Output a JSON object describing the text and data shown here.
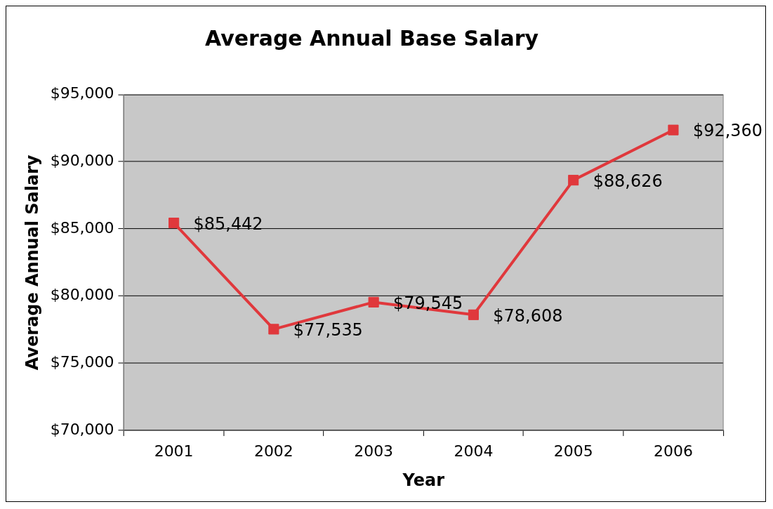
{
  "chart_data": {
    "type": "line",
    "title": "Average Annual Base Salary",
    "xlabel": "Year",
    "ylabel": "Average Annual Salary",
    "categories": [
      "2001",
      "2002",
      "2003",
      "2004",
      "2005",
      "2006"
    ],
    "series": [
      {
        "color": "#e0383c",
        "values": [
          85442,
          77535,
          79545,
          78608,
          88626,
          92360
        ]
      }
    ],
    "ylim": [
      70000,
      95000
    ],
    "yticks": [
      {
        "value": 70000,
        "label": "$70,000"
      },
      {
        "value": 75000,
        "label": "$75,000"
      },
      {
        "value": 80000,
        "label": "$80,000"
      },
      {
        "value": 85000,
        "label": "$85,000"
      },
      {
        "value": 90000,
        "label": "$90,000"
      },
      {
        "value": 95000,
        "label": "$95,000"
      }
    ],
    "value_labels": [
      "$85,442",
      "$77,535",
      "$79,545",
      "$78,608",
      "$88,626",
      "$92,360"
    ],
    "grid": "y",
    "legend": false,
    "marker": "square",
    "line_style": "solid"
  }
}
